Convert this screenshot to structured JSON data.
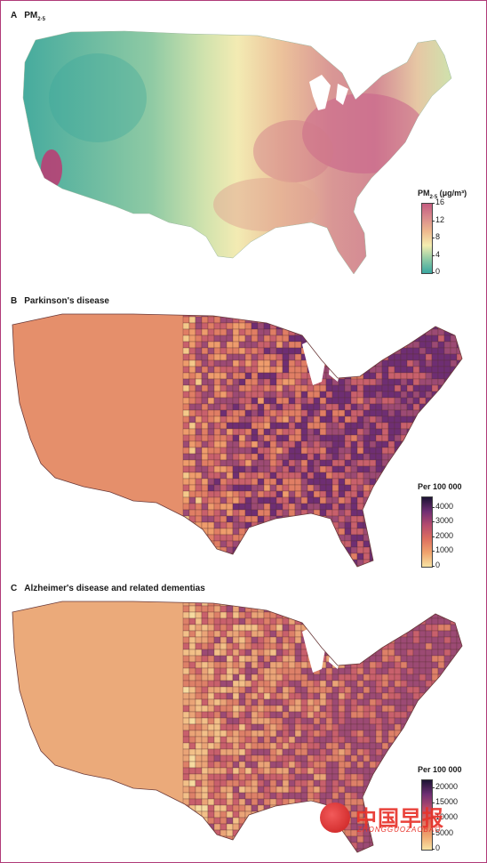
{
  "panels": [
    {
      "id": "A",
      "letter": "A",
      "title": "PM",
      "title_sub": "2·5",
      "legend": {
        "title": "PM",
        "title_sub": "2·5",
        "title_unit": " (μg/m³)",
        "ticks": [
          "16",
          "12",
          "8",
          "4",
          "0"
        ],
        "tick_values": [
          16,
          12,
          8,
          4,
          0
        ],
        "range": [
          0,
          16
        ],
        "colors": [
          "#3aa7a0",
          "#8fcaa5",
          "#f4edb0",
          "#eeb98e",
          "#d98a8c",
          "#c45d80"
        ]
      }
    },
    {
      "id": "B",
      "letter": "B",
      "title": "Parkinson's disease",
      "legend": {
        "title": "Per 100 000",
        "ticks": [
          "4000",
          "3000",
          "2000",
          "1000",
          "0"
        ],
        "tick_values": [
          4000,
          3000,
          2000,
          1000,
          0
        ],
        "range": [
          0,
          4700
        ],
        "colors": [
          "#f7e3a4",
          "#f0a46d",
          "#dd6f5f",
          "#b54b6e",
          "#6e2e73",
          "#1c1334"
        ]
      }
    },
    {
      "id": "C",
      "letter": "C",
      "title": "Alzheimer's disease and related dementias",
      "legend": {
        "title": "Per 100 000",
        "ticks": [
          "20000",
          "15000",
          "10000",
          "5000",
          "0"
        ],
        "tick_values": [
          20000,
          15000,
          10000,
          5000,
          0
        ],
        "range": [
          0,
          22500
        ],
        "colors": [
          "#f7e3a4",
          "#f0a46d",
          "#dd6f5f",
          "#b54b6e",
          "#6e2e73",
          "#1c1334"
        ]
      }
    }
  ],
  "watermark": {
    "text": "中国早报",
    "sub": "ZHONGGUOZAOBAO",
    "colors": [
      "#e8332b"
    ]
  }
}
